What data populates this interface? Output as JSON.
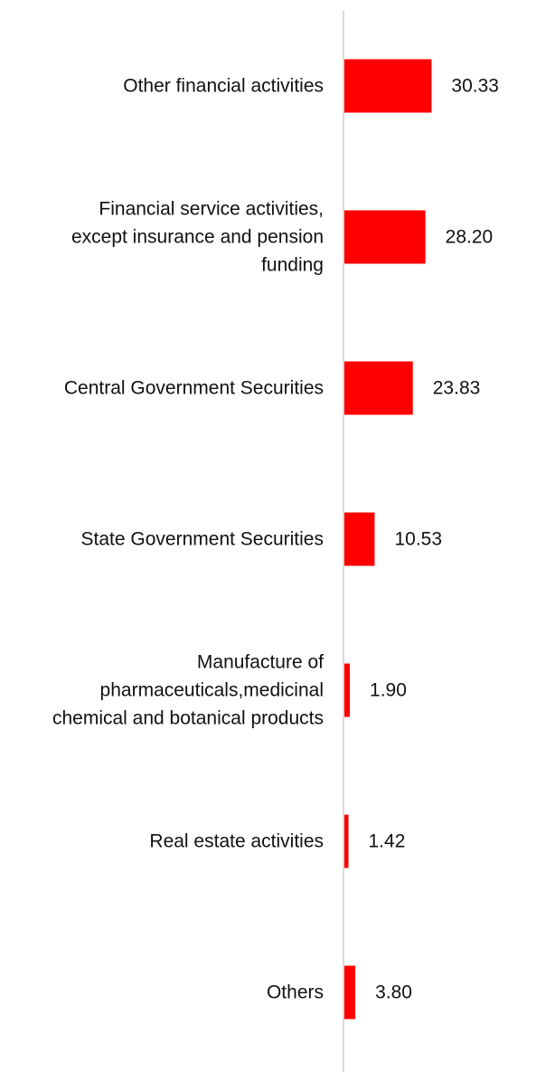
{
  "chart_data": {
    "type": "bar",
    "orientation": "horizontal",
    "categories": [
      [
        "Other financial activities"
      ],
      [
        "Financial service activities,",
        "except insurance and pension",
        "funding"
      ],
      [
        "Central Government Securities"
      ],
      [
        "State Government Securities"
      ],
      [
        "Manufacture of",
        "pharmaceuticals,medicinal",
        "chemical and botanical products"
      ],
      [
        "Real estate activities"
      ],
      [
        "Others"
      ]
    ],
    "values": [
      30.33,
      28.2,
      23.83,
      10.53,
      1.9,
      1.42,
      3.8
    ],
    "value_labels": [
      "30.33",
      "28.20",
      "23.83",
      "10.53",
      "1.90",
      "1.42",
      "3.80"
    ],
    "title": "",
    "xlabel": "",
    "ylabel": "",
    "xlim": [
      0,
      67
    ],
    "grid": false,
    "legend": "none",
    "bar_color": "#ff0000",
    "axis_color": "#d9d9d9"
  }
}
